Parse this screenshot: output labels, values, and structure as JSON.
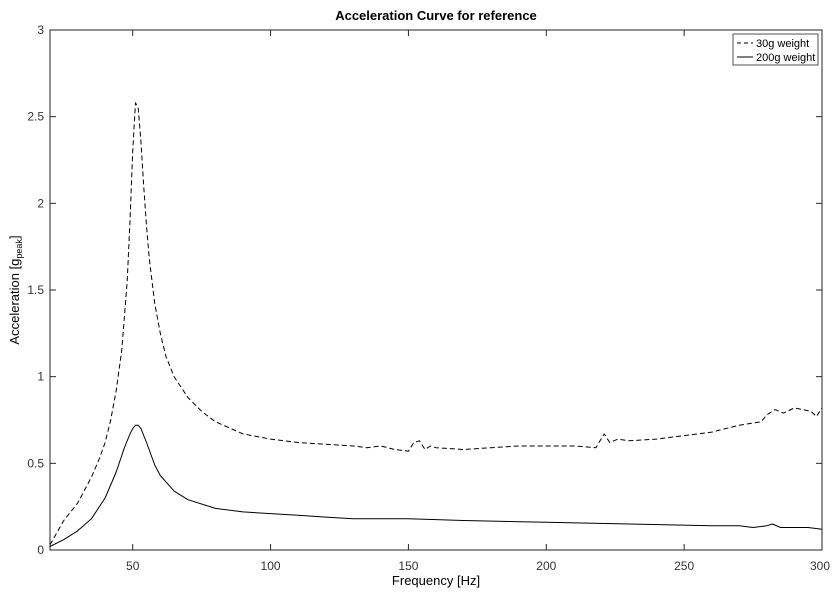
{
  "chart_data": {
    "type": "line",
    "title": "Acceleration Curve for reference",
    "xlabel": "Frequency [Hz]",
    "ylabel_main": "Acceleration [g",
    "ylabel_sub": "peak",
    "ylabel_close": "]",
    "xlim": [
      20,
      300
    ],
    "ylim": [
      0,
      3
    ],
    "xticks": [
      50,
      100,
      150,
      200,
      250,
      300
    ],
    "yticks": [
      0,
      0.5,
      1,
      1.5,
      2,
      2.5,
      3
    ],
    "grid": false,
    "legend_position": "top-right",
    "series": [
      {
        "name": "30g weight",
        "style": "dashed",
        "color": "#000000",
        "x": [
          20,
          25,
          30,
          35,
          38,
          40,
          42,
          44,
          46,
          48,
          49,
          50,
          51,
          52,
          53,
          54,
          55,
          56,
          58,
          60,
          62,
          65,
          70,
          75,
          80,
          90,
          100,
          110,
          120,
          130,
          135,
          140,
          145,
          150,
          152,
          154,
          156,
          158,
          160,
          170,
          180,
          190,
          200,
          210,
          218,
          221,
          223,
          226,
          230,
          240,
          250,
          260,
          270,
          278,
          280,
          283,
          286,
          290,
          293,
          296,
          298,
          300
        ],
        "y": [
          0.03,
          0.17,
          0.27,
          0.42,
          0.53,
          0.62,
          0.75,
          0.92,
          1.15,
          1.55,
          1.9,
          2.3,
          2.58,
          2.55,
          2.35,
          2.1,
          1.87,
          1.68,
          1.42,
          1.25,
          1.12,
          1.0,
          0.88,
          0.8,
          0.74,
          0.67,
          0.64,
          0.62,
          0.61,
          0.6,
          0.59,
          0.6,
          0.58,
          0.57,
          0.62,
          0.63,
          0.58,
          0.6,
          0.59,
          0.58,
          0.59,
          0.6,
          0.6,
          0.6,
          0.59,
          0.67,
          0.62,
          0.64,
          0.63,
          0.64,
          0.66,
          0.68,
          0.72,
          0.74,
          0.78,
          0.81,
          0.79,
          0.82,
          0.81,
          0.8,
          0.77,
          0.82
        ]
      },
      {
        "name": "200g weight",
        "style": "solid",
        "color": "#000000",
        "x": [
          20,
          25,
          30,
          35,
          40,
          44,
          47,
          49,
          50,
          51,
          52,
          53,
          55,
          58,
          60,
          65,
          70,
          80,
          90,
          100,
          110,
          120,
          130,
          150,
          170,
          200,
          230,
          260,
          270,
          275,
          280,
          282,
          285,
          290,
          295,
          300
        ],
        "y": [
          0.02,
          0.06,
          0.11,
          0.18,
          0.3,
          0.45,
          0.59,
          0.67,
          0.7,
          0.72,
          0.72,
          0.7,
          0.62,
          0.49,
          0.43,
          0.34,
          0.29,
          0.24,
          0.22,
          0.21,
          0.2,
          0.19,
          0.18,
          0.18,
          0.17,
          0.16,
          0.15,
          0.14,
          0.14,
          0.13,
          0.14,
          0.15,
          0.13,
          0.13,
          0.13,
          0.12
        ]
      }
    ]
  }
}
